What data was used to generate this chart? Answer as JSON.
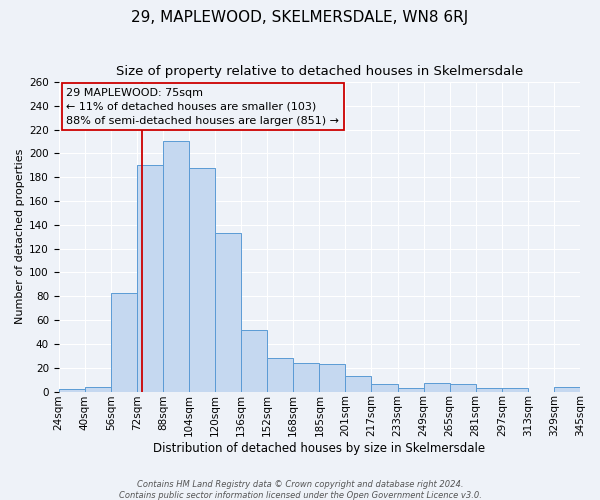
{
  "title": "29, MAPLEWOOD, SKELMERSDALE, WN8 6RJ",
  "subtitle": "Size of property relative to detached houses in Skelmersdale",
  "xlabel": "Distribution of detached houses by size in Skelmersdale",
  "ylabel": "Number of detached properties",
  "bar_labels": [
    "24sqm",
    "40sqm",
    "56sqm",
    "72sqm",
    "88sqm",
    "104sqm",
    "120sqm",
    "136sqm",
    "152sqm",
    "168sqm",
    "185sqm",
    "201sqm",
    "217sqm",
    "233sqm",
    "249sqm",
    "265sqm",
    "281sqm",
    "297sqm",
    "313sqm",
    "329sqm",
    "345sqm"
  ],
  "bar_values": [
    2,
    4,
    83,
    190,
    210,
    188,
    133,
    52,
    28,
    24,
    23,
    13,
    6,
    3,
    7,
    6,
    3,
    3,
    0,
    4
  ],
  "bar_color": "#c5d8f0",
  "bar_edgecolor": "#5b9bd5",
  "marker_label": "29 MAPLEWOOD: 75sqm",
  "annotation_line1": "← 11% of detached houses are smaller (103)",
  "annotation_line2": "88% of semi-detached houses are larger (851) →",
  "ylim": [
    0,
    260
  ],
  "yticks": [
    0,
    20,
    40,
    60,
    80,
    100,
    120,
    140,
    160,
    180,
    200,
    220,
    240,
    260
  ],
  "footer_line1": "Contains HM Land Registry data © Crown copyright and database right 2024.",
  "footer_line2": "Contains public sector information licensed under the Open Government Licence v3.0.",
  "background_color": "#eef2f8",
  "grid_color": "#ffffff",
  "vline_color": "#cc0000",
  "vline_x_label_idx": 3,
  "box_edgecolor": "#cc0000",
  "title_fontsize": 11,
  "subtitle_fontsize": 9.5,
  "xlabel_fontsize": 8.5,
  "ylabel_fontsize": 8,
  "tick_fontsize": 7.5,
  "annotation_fontsize": 8,
  "footer_fontsize": 6
}
